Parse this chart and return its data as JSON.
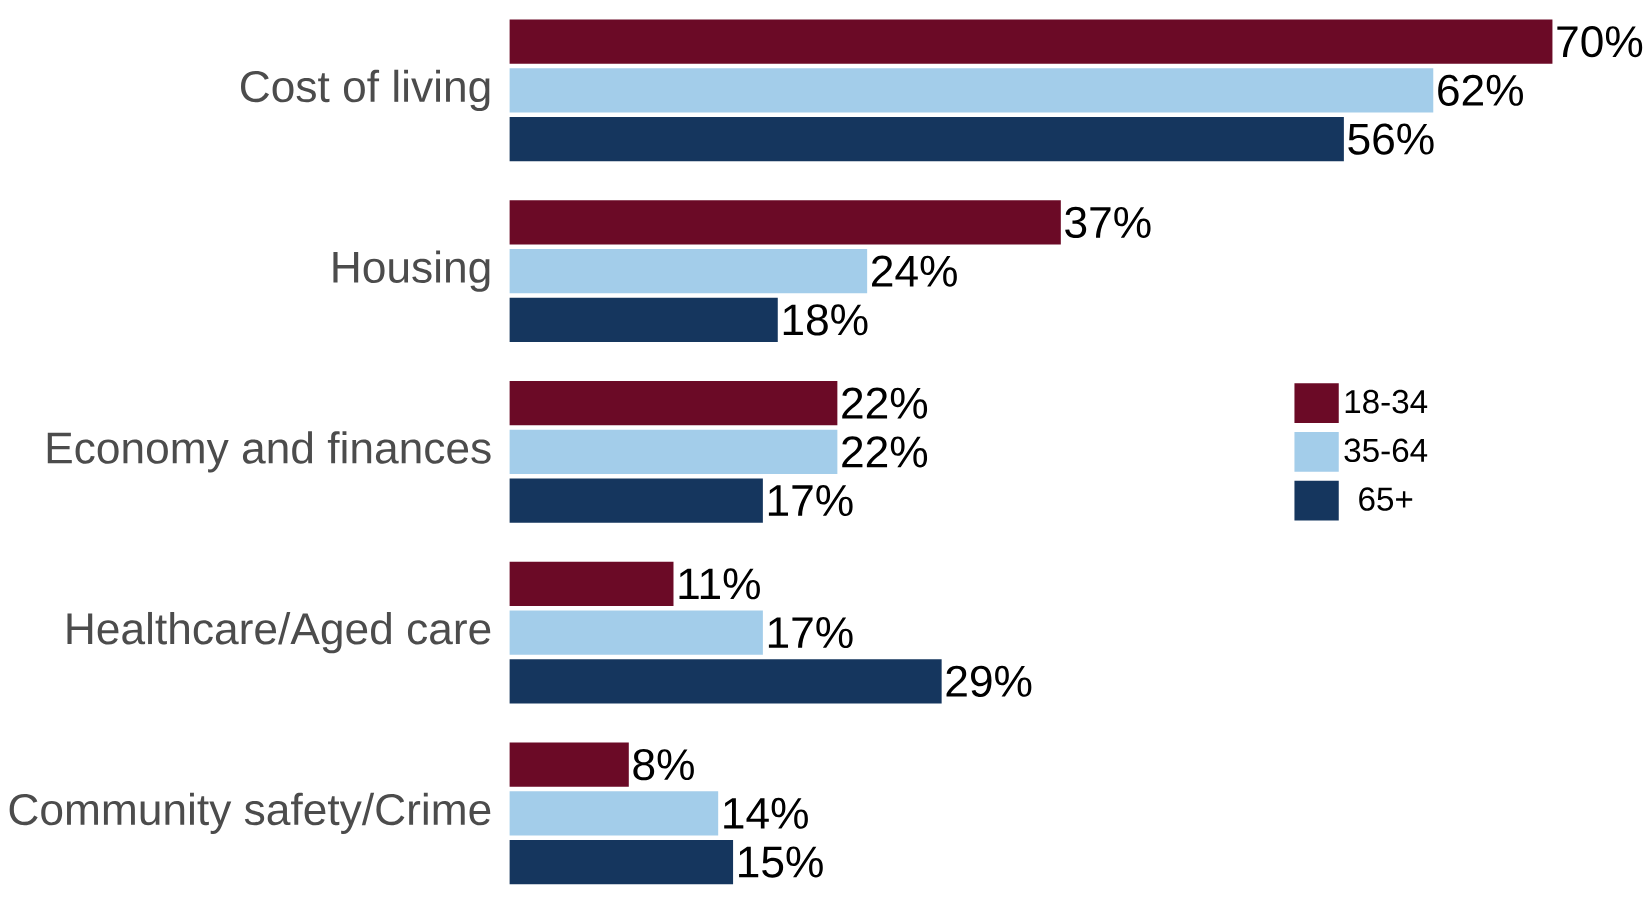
{
  "chart_data": {
    "type": "bar",
    "orientation": "horizontal",
    "categories": [
      "Cost of living",
      "Housing",
      "Economy and finances",
      "Healthcare/Aged care",
      "Community safety/Crime"
    ],
    "series": [
      {
        "name": "18-34",
        "color": "#6b0a26",
        "values": [
          70,
          37,
          22,
          11,
          8
        ],
        "value_labels": [
          "70%",
          "37%",
          "22%",
          "11%",
          "8%"
        ]
      },
      {
        "name": "35-64",
        "color": "#a3cdea",
        "values": [
          62,
          24,
          22,
          17,
          14
        ],
        "value_labels": [
          "62%",
          "24%",
          "22%",
          "17%",
          "14%"
        ]
      },
      {
        "name": "65+",
        "color": "#15365e",
        "values": [
          56,
          18,
          17,
          29,
          15
        ],
        "value_labels": [
          "56%",
          "18%",
          "17%",
          "29%",
          "15%"
        ]
      }
    ],
    "legend": "right"
  }
}
